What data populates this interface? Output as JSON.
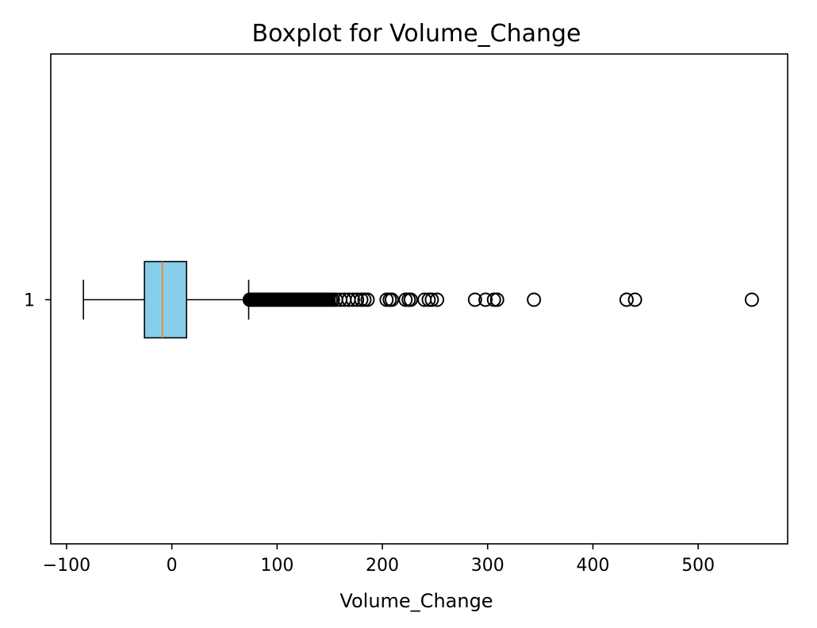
{
  "chart_data": {
    "type": "boxplot",
    "orientation": "horizontal",
    "title": "Boxplot for Volume_Change",
    "xlabel": "Volume_Change",
    "ylabel": "",
    "xlim": [
      -115,
      585
    ],
    "xticks": [
      -100,
      0,
      100,
      200,
      300,
      400,
      500
    ],
    "xtick_labels": [
      "−100",
      "0",
      "100",
      "200",
      "300",
      "400",
      "500"
    ],
    "yticks": [
      "1"
    ],
    "grid": false,
    "box": {
      "category": "1",
      "whisker_low": -84,
      "q1": -26,
      "median": -9,
      "q3": 14,
      "whisker_high": 73,
      "box_color": "#87CEEB",
      "median_color": "#FF7F0E",
      "outliers": [
        74,
        75,
        76,
        77,
        78,
        79,
        80,
        81,
        82,
        83,
        84,
        85,
        86,
        87,
        88,
        89,
        90,
        91,
        92,
        93,
        94,
        95,
        96,
        97,
        98,
        99,
        100,
        101,
        102,
        103,
        104,
        105,
        106,
        107,
        108,
        109,
        110,
        111,
        112,
        113,
        114,
        115,
        116,
        117,
        118,
        119,
        120,
        121,
        122,
        123,
        124,
        125,
        126,
        127,
        128,
        129,
        130,
        131,
        132,
        133,
        134,
        135,
        136,
        137,
        138,
        139,
        140,
        141,
        142,
        143,
        144,
        145,
        146,
        147,
        148,
        149,
        151,
        153,
        156,
        160,
        164,
        168,
        172,
        176,
        180,
        183,
        186,
        204,
        207,
        209,
        222,
        225,
        227,
        240,
        244,
        247,
        252,
        288,
        298,
        306,
        309,
        344,
        432,
        440,
        551
      ]
    }
  }
}
